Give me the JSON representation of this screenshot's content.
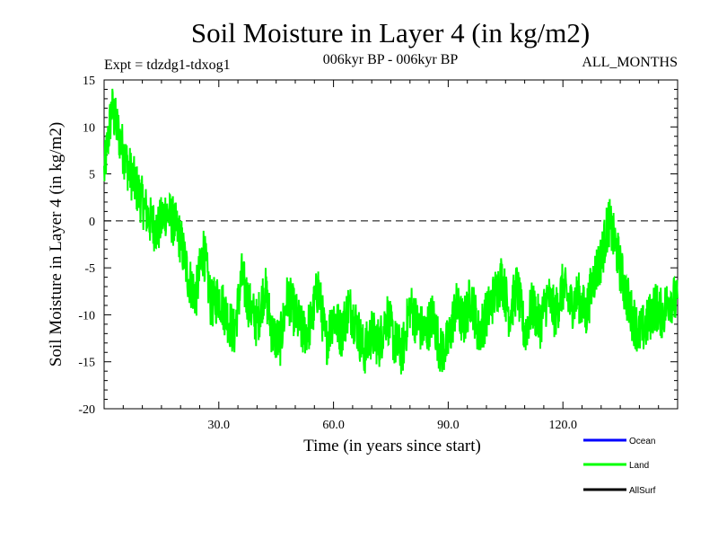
{
  "chart_data": {
    "type": "line",
    "title": "Soil Moisture in Layer 4 (in kg/m2)",
    "subtitle_left": "Expt = tdzdg1-tdxog1",
    "subtitle_center": "006kyr BP - 006kyr BP",
    "subtitle_right": "ALL_MONTHS",
    "xlabel": "Time (in years since start)",
    "ylabel": "Soil Moisture in Layer 4 (in kg/m2)",
    "xlim": [
      0,
      150
    ],
    "ylim": [
      -20,
      15
    ],
    "x_ticks": [
      30,
      60,
      90,
      120
    ],
    "x_tick_labels": [
      "30.0",
      "60.0",
      "90.0",
      "120.0"
    ],
    "y_ticks": [
      15,
      10,
      5,
      0,
      -5,
      -10,
      -15,
      -20
    ],
    "y_tick_labels": [
      "15",
      "10",
      "5",
      "0",
      "-5",
      "-10",
      "-15",
      "-20"
    ],
    "reference_line": 0,
    "series": [
      {
        "name": "Land",
        "color": "#00ff00",
        "x": [
          0,
          2,
          4,
          6,
          8,
          10,
          12,
          14,
          16,
          18,
          20,
          22,
          24,
          26,
          28,
          30,
          32,
          34,
          36,
          38,
          40,
          42,
          44,
          46,
          48,
          50,
          52,
          54,
          56,
          58,
          60,
          62,
          64,
          66,
          68,
          70,
          72,
          74,
          76,
          78,
          80,
          82,
          84,
          86,
          88,
          90,
          92,
          94,
          96,
          98,
          100,
          102,
          104,
          106,
          108,
          110,
          112,
          114,
          116,
          118,
          120,
          122,
          124,
          126,
          128,
          130,
          132,
          134,
          136,
          138,
          140,
          142,
          144,
          146,
          148,
          150
        ],
        "values": [
          5,
          12,
          9,
          6,
          4,
          2,
          0,
          -1,
          1,
          0,
          -2,
          -6,
          -8,
          -3,
          -9,
          -8,
          -10,
          -12,
          -6,
          -9,
          -11,
          -7,
          -12,
          -13,
          -8,
          -10,
          -12,
          -11,
          -7,
          -13,
          -10,
          -12,
          -9,
          -11,
          -14,
          -12,
          -13,
          -10,
          -13,
          -14,
          -9,
          -11,
          -12,
          -10,
          -14,
          -13,
          -9,
          -11,
          -8,
          -12,
          -10,
          -8,
          -6,
          -10,
          -7,
          -12,
          -9,
          -11,
          -8,
          -10,
          -7,
          -9,
          -8,
          -10,
          -6,
          -4,
          0,
          -3,
          -7,
          -10,
          -12,
          -11,
          -9,
          -10,
          -8,
          -9
        ]
      },
      {
        "name": "Ocean",
        "color": "#0000ff",
        "x": [],
        "values": []
      },
      {
        "name": "AllSurf",
        "color": "#000000",
        "x": [],
        "values": []
      }
    ],
    "legend": [
      {
        "label": "Ocean",
        "color": "#0000ff"
      },
      {
        "label": "Land",
        "color": "#00ff00"
      },
      {
        "label": "AllSurf",
        "color": "#000000"
      }
    ],
    "legend_position": "bottom-right"
  }
}
